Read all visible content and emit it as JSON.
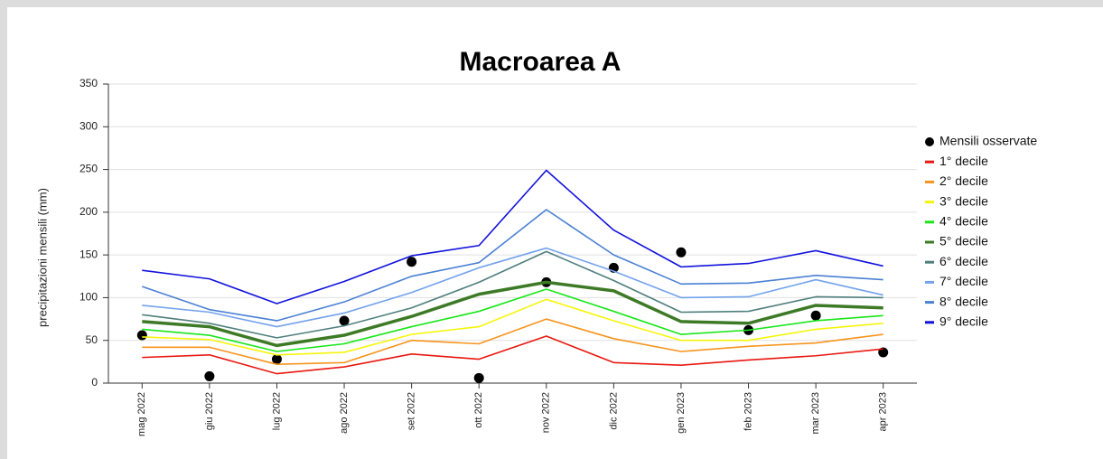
{
  "chart_data": {
    "type": "line",
    "title": "Macroarea A",
    "y_label": "precipitazioni mensili (mm)",
    "categories": [
      "mag 2022",
      "giu 2022",
      "lug 2022",
      "ago 2022",
      "set 2022",
      "ott 2022",
      "nov 2022",
      "dic 2022",
      "gen 2023",
      "feb 2023",
      "mar 2023",
      "apr 2023"
    ],
    "ylim": [
      0,
      350
    ],
    "yticks": [
      0,
      50,
      100,
      150,
      200,
      250,
      300,
      350
    ],
    "grid": true,
    "legend": "right",
    "series": [
      {
        "name": "Mensili osservate",
        "color": "#000000",
        "kind": "scatter",
        "values": [
          56,
          8,
          28,
          73,
          142,
          6,
          118,
          135,
          153,
          62,
          79,
          36
        ]
      },
      {
        "name": "1° decile",
        "color": "#e8170f",
        "values": [
          30,
          33,
          11,
          19,
          34,
          28,
          55,
          24,
          21,
          27,
          32,
          40
        ]
      },
      {
        "name": "2° decile",
        "color": "#f7941d",
        "values": [
          42,
          42,
          22,
          24,
          50,
          46,
          75,
          52,
          37,
          43,
          47,
          57
        ]
      },
      {
        "name": "3° decile",
        "color": "#f5f50a",
        "values": [
          54,
          51,
          33,
          36,
          57,
          66,
          98,
          73,
          50,
          50,
          63,
          70
        ]
      },
      {
        "name": "4° decile",
        "color": "#19e619",
        "values": [
          63,
          56,
          37,
          46,
          66,
          84,
          110,
          84,
          57,
          62,
          73,
          79
        ]
      },
      {
        "name": "5° decile",
        "color": "#3d7a26",
        "width": 3.5,
        "values": [
          72,
          66,
          44,
          56,
          78,
          104,
          118,
          108,
          72,
          70,
          91,
          88
        ]
      },
      {
        "name": "6° decile",
        "color": "#4f7f7c",
        "values": [
          80,
          70,
          53,
          67,
          88,
          118,
          154,
          120,
          83,
          84,
          101,
          100
        ]
      },
      {
        "name": "7° decile",
        "color": "#73a2ec",
        "values": [
          91,
          83,
          66,
          82,
          106,
          135,
          158,
          131,
          100,
          101,
          121,
          103
        ]
      },
      {
        "name": "8° decile",
        "color": "#4a80d4",
        "values": [
          113,
          86,
          73,
          95,
          125,
          141,
          203,
          150,
          116,
          117,
          126,
          121
        ]
      },
      {
        "name": "9° decile",
        "color": "#1212dd",
        "values": [
          132,
          122,
          93,
          119,
          149,
          161,
          249,
          179,
          136,
          140,
          155,
          137
        ]
      }
    ]
  }
}
